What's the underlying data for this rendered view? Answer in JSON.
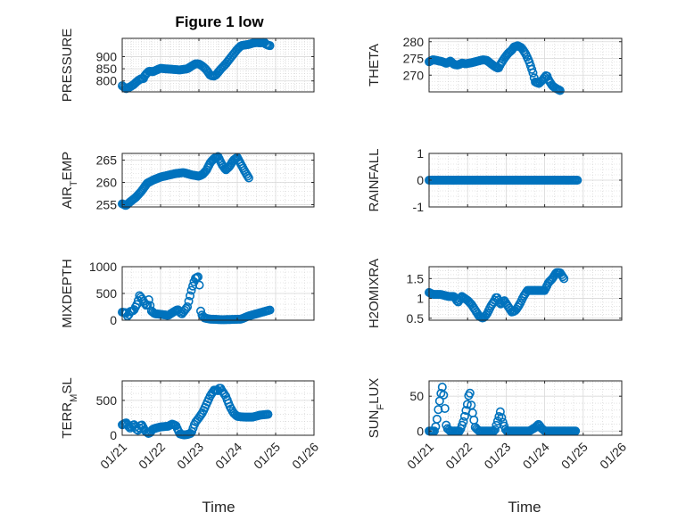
{
  "figure": {
    "title": "Figure 1 low",
    "xlabel": "Time"
  },
  "chart_data": [
    {
      "type": "scatter",
      "id": "pressure",
      "ylabel": "PRESSURE",
      "ylim": [
        755,
        975
      ],
      "yticks": [
        800,
        850,
        900
      ],
      "xlim": [
        0,
        5
      ],
      "color": "#0072BD",
      "anchors": [
        [
          0.0,
          780
        ],
        [
          0.1,
          768
        ],
        [
          0.2,
          775
        ],
        [
          0.3,
          785
        ],
        [
          0.4,
          800
        ],
        [
          0.5,
          810
        ],
        [
          0.55,
          808
        ],
        [
          0.6,
          825
        ],
        [
          0.7,
          840
        ],
        [
          0.8,
          838
        ],
        [
          0.9,
          845
        ],
        [
          1.0,
          852
        ],
        [
          1.1,
          850
        ],
        [
          1.3,
          848
        ],
        [
          1.5,
          845
        ],
        [
          1.7,
          850
        ],
        [
          1.8,
          860
        ],
        [
          1.9,
          870
        ],
        [
          2.0,
          870
        ],
        [
          2.1,
          860
        ],
        [
          2.2,
          845
        ],
        [
          2.3,
          822
        ],
        [
          2.4,
          820
        ],
        [
          2.45,
          825
        ],
        [
          2.55,
          845
        ],
        [
          2.7,
          870
        ],
        [
          2.85,
          900
        ],
        [
          3.0,
          930
        ],
        [
          3.1,
          945
        ],
        [
          3.2,
          948
        ],
        [
          3.3,
          950
        ],
        [
          3.4,
          955
        ],
        [
          3.5,
          958
        ],
        [
          3.6,
          956
        ],
        [
          3.7,
          960
        ],
        [
          3.75,
          950
        ],
        [
          3.85,
          945
        ]
      ],
      "xticks": [
        0,
        1,
        2,
        3,
        4,
        5
      ],
      "xticklabels": [
        "01/21",
        "01/22",
        "01/23",
        "01/24",
        "01/25",
        "01/26"
      ],
      "show_xticklabels": false
    },
    {
      "type": "scatter",
      "id": "theta",
      "ylabel": "THETA",
      "ylim": [
        265,
        281
      ],
      "yticks": [
        270,
        275,
        280
      ],
      "xlim": [
        0,
        5
      ],
      "color": "#0072BD",
      "anchors": [
        [
          0.0,
          274
        ],
        [
          0.1,
          274.6
        ],
        [
          0.2,
          274.4
        ],
        [
          0.35,
          274
        ],
        [
          0.45,
          273.5
        ],
        [
          0.55,
          274.2
        ],
        [
          0.65,
          273.2
        ],
        [
          0.75,
          273
        ],
        [
          0.85,
          273.6
        ],
        [
          0.95,
          273.4
        ],
        [
          1.1,
          273.7
        ],
        [
          1.2,
          274
        ],
        [
          1.3,
          274.3
        ],
        [
          1.4,
          274.6
        ],
        [
          1.5,
          274.4
        ],
        [
          1.6,
          273.5
        ],
        [
          1.7,
          272.6
        ],
        [
          1.8,
          272
        ],
        [
          1.85,
          273.2
        ],
        [
          1.95,
          275
        ],
        [
          2.05,
          276.5
        ],
        [
          2.15,
          277.5
        ],
        [
          2.2,
          278.4
        ],
        [
          2.3,
          278.8
        ],
        [
          2.4,
          278.2
        ],
        [
          2.5,
          276.5
        ],
        [
          2.6,
          274
        ],
        [
          2.7,
          270.5
        ],
        [
          2.75,
          268
        ],
        [
          2.85,
          267.5
        ],
        [
          2.95,
          268.6
        ],
        [
          3.05,
          270.1
        ],
        [
          3.1,
          268.6
        ],
        [
          3.2,
          266.8
        ],
        [
          3.3,
          266
        ],
        [
          3.4,
          265.4
        ]
      ],
      "xticks": [
        0,
        1,
        2,
        3,
        4,
        5
      ],
      "xticklabels": [
        "01/21",
        "01/22",
        "01/23",
        "01/24",
        "01/25",
        "01/26"
      ],
      "show_xticklabels": false
    },
    {
      "type": "scatter",
      "id": "air-temp",
      "ylabel": "AIR_TEMP",
      "ylim": [
        254.5,
        266.5
      ],
      "yticks": [
        255,
        260,
        265
      ],
      "xlim": [
        0,
        5
      ],
      "color": "#0072BD",
      "anchors": [
        [
          0.0,
          255.2
        ],
        [
          0.1,
          254.8
        ],
        [
          0.2,
          255.6
        ],
        [
          0.35,
          256.6
        ],
        [
          0.5,
          258
        ],
        [
          0.65,
          259.8
        ],
        [
          0.8,
          260.5
        ],
        [
          1.0,
          261.2
        ],
        [
          1.2,
          261.6
        ],
        [
          1.4,
          262
        ],
        [
          1.6,
          262.2
        ],
        [
          1.8,
          261.7
        ],
        [
          2.0,
          261.4
        ],
        [
          2.1,
          261.8
        ],
        [
          2.2,
          262.8
        ],
        [
          2.3,
          264.5
        ],
        [
          2.4,
          265.4
        ],
        [
          2.5,
          265.8
        ],
        [
          2.6,
          264
        ],
        [
          2.7,
          262.8
        ],
        [
          2.8,
          263.6
        ],
        [
          2.9,
          265
        ],
        [
          3.0,
          265.6
        ],
        [
          3.1,
          264
        ],
        [
          3.2,
          262.4
        ],
        [
          3.3,
          261
        ]
      ],
      "xticks": [
        0,
        1,
        2,
        3,
        4,
        5
      ],
      "xticklabels": [
        "01/21",
        "01/22",
        "01/23",
        "01/24",
        "01/25",
        "01/26"
      ],
      "show_xticklabels": false
    },
    {
      "type": "scatter",
      "id": "rainfall",
      "ylabel": "RAINFALL",
      "ylim": [
        -1,
        1
      ],
      "yticks": [
        -1,
        0,
        1
      ],
      "xlim": [
        0,
        5
      ],
      "color": "#0072BD",
      "anchors": [
        [
          0.0,
          0
        ],
        [
          3.85,
          0
        ]
      ],
      "xticks": [
        0,
        1,
        2,
        3,
        4,
        5
      ],
      "xticklabels": [
        "01/21",
        "01/22",
        "01/23",
        "01/24",
        "01/25",
        "01/26"
      ],
      "show_xticklabels": false
    },
    {
      "type": "scatter",
      "id": "mixdepth",
      "ylabel": "MIXDEPTH",
      "ylim": [
        0,
        1000
      ],
      "yticks": [
        0,
        500,
        1000
      ],
      "xlim": [
        0,
        5
      ],
      "color": "#0072BD",
      "anchors": [
        [
          0.0,
          150
        ],
        [
          0.1,
          140
        ],
        [
          0.15,
          60
        ],
        [
          0.2,
          160
        ],
        [
          0.3,
          180
        ],
        [
          0.4,
          320
        ],
        [
          0.45,
          460
        ],
        [
          0.5,
          420
        ],
        [
          0.6,
          300
        ],
        [
          0.65,
          260
        ],
        [
          0.7,
          400
        ],
        [
          0.75,
          180
        ],
        [
          0.85,
          120
        ],
        [
          1.0,
          110
        ],
        [
          1.2,
          90
        ],
        [
          1.35,
          160
        ],
        [
          1.45,
          200
        ],
        [
          1.55,
          110
        ],
        [
          1.7,
          250
        ],
        [
          1.8,
          550
        ],
        [
          1.9,
          780
        ],
        [
          2.0,
          820
        ],
        [
          2.05,
          120
        ],
        [
          2.15,
          40
        ],
        [
          2.3,
          20
        ],
        [
          2.6,
          10
        ],
        [
          2.9,
          15
        ],
        [
          3.1,
          20
        ],
        [
          3.3,
          80
        ],
        [
          3.5,
          120
        ],
        [
          3.7,
          160
        ],
        [
          3.85,
          190
        ]
      ],
      "xticks": [
        0,
        1,
        2,
        3,
        4,
        5
      ],
      "xticklabels": [
        "01/21",
        "01/22",
        "01/23",
        "01/24",
        "01/25",
        "01/26"
      ],
      "show_xticklabels": false
    },
    {
      "type": "scatter",
      "id": "h2omixra",
      "ylabel": "H2OMIXRA",
      "ylim": [
        0.45,
        1.8
      ],
      "yticks": [
        0.5,
        1,
        1.5
      ],
      "xlim": [
        0,
        5
      ],
      "color": "#0072BD",
      "anchors": [
        [
          0.0,
          1.15
        ],
        [
          0.1,
          1.1
        ],
        [
          0.3,
          1.1
        ],
        [
          0.5,
          1.05
        ],
        [
          0.65,
          1.05
        ],
        [
          0.75,
          0.9
        ],
        [
          0.85,
          1.05
        ],
        [
          1.0,
          0.95
        ],
        [
          1.1,
          0.85
        ],
        [
          1.2,
          0.7
        ],
        [
          1.3,
          0.55
        ],
        [
          1.4,
          0.5
        ],
        [
          1.5,
          0.6
        ],
        [
          1.6,
          0.8
        ],
        [
          1.7,
          0.95
        ],
        [
          1.75,
          1.05
        ],
        [
          1.85,
          0.85
        ],
        [
          1.95,
          0.95
        ],
        [
          2.05,
          0.8
        ],
        [
          2.15,
          0.65
        ],
        [
          2.25,
          0.7
        ],
        [
          2.35,
          0.85
        ],
        [
          2.45,
          1.05
        ],
        [
          2.55,
          1.2
        ],
        [
          2.7,
          1.2
        ],
        [
          2.85,
          1.2
        ],
        [
          3.0,
          1.2
        ],
        [
          3.1,
          1.4
        ],
        [
          3.2,
          1.5
        ],
        [
          3.3,
          1.65
        ],
        [
          3.4,
          1.65
        ],
        [
          3.5,
          1.5
        ]
      ],
      "xticks": [
        0,
        1,
        2,
        3,
        4,
        5
      ],
      "xticklabels": [
        "01/21",
        "01/22",
        "01/23",
        "01/24",
        "01/25",
        "01/26"
      ],
      "show_xticklabels": false
    },
    {
      "type": "scatter",
      "id": "terr-msl",
      "ylabel": "TERR_MSL",
      "ylim": [
        0,
        780
      ],
      "yticks": [
        0,
        500
      ],
      "xlim": [
        0,
        5
      ],
      "color": "#0072BD",
      "anchors": [
        [
          0.0,
          150
        ],
        [
          0.1,
          180
        ],
        [
          0.2,
          100
        ],
        [
          0.3,
          160
        ],
        [
          0.4,
          60
        ],
        [
          0.5,
          160
        ],
        [
          0.6,
          60
        ],
        [
          0.7,
          20
        ],
        [
          0.8,
          90
        ],
        [
          1.0,
          120
        ],
        [
          1.2,
          130
        ],
        [
          1.3,
          160
        ],
        [
          1.4,
          140
        ],
        [
          1.5,
          20
        ],
        [
          1.6,
          5
        ],
        [
          1.7,
          10
        ],
        [
          1.8,
          30
        ],
        [
          1.9,
          180
        ],
        [
          2.0,
          250
        ],
        [
          2.1,
          330
        ],
        [
          2.2,
          450
        ],
        [
          2.3,
          570
        ],
        [
          2.4,
          650
        ],
        [
          2.5,
          640
        ],
        [
          2.55,
          690
        ],
        [
          2.6,
          640
        ],
        [
          2.7,
          560
        ],
        [
          2.8,
          420
        ],
        [
          2.9,
          320
        ],
        [
          3.0,
          270
        ],
        [
          3.2,
          260
        ],
        [
          3.4,
          260
        ],
        [
          3.6,
          290
        ],
        [
          3.8,
          300
        ]
      ],
      "xticks": [
        0,
        1,
        2,
        3,
        4,
        5
      ],
      "xticklabels": [
        "01/21",
        "01/22",
        "01/23",
        "01/24",
        "01/25",
        "01/26"
      ],
      "show_xticklabels": true
    },
    {
      "type": "scatter",
      "id": "sun-flux",
      "ylabel": "SUN_FLUX",
      "ylim": [
        -6,
        72
      ],
      "yticks": [
        0,
        50
      ],
      "xlim": [
        0,
        5
      ],
      "color": "#0072BD",
      "anchors": [
        [
          0.0,
          0
        ],
        [
          0.15,
          0
        ],
        [
          0.2,
          15
        ],
        [
          0.25,
          35
        ],
        [
          0.3,
          52
        ],
        [
          0.35,
          65
        ],
        [
          0.4,
          40
        ],
        [
          0.45,
          5
        ],
        [
          0.55,
          0
        ],
        [
          0.8,
          0
        ],
        [
          0.9,
          15
        ],
        [
          1.0,
          40
        ],
        [
          1.05,
          60
        ],
        [
          1.1,
          35
        ],
        [
          1.2,
          5
        ],
        [
          1.3,
          0
        ],
        [
          1.5,
          0
        ],
        [
          1.7,
          0
        ],
        [
          1.8,
          18
        ],
        [
          1.85,
          28
        ],
        [
          1.9,
          15
        ],
        [
          2.0,
          0
        ],
        [
          2.3,
          0
        ],
        [
          2.5,
          0
        ],
        [
          2.6,
          0
        ],
        [
          2.75,
          5
        ],
        [
          2.85,
          10
        ],
        [
          2.9,
          5
        ],
        [
          3.0,
          0
        ],
        [
          3.3,
          0
        ],
        [
          3.8,
          0
        ]
      ],
      "xticks": [
        0,
        1,
        2,
        3,
        4,
        5
      ],
      "xticklabels": [
        "01/21",
        "01/22",
        "01/23",
        "01/24",
        "01/25",
        "01/26"
      ],
      "show_xticklabels": true
    }
  ]
}
